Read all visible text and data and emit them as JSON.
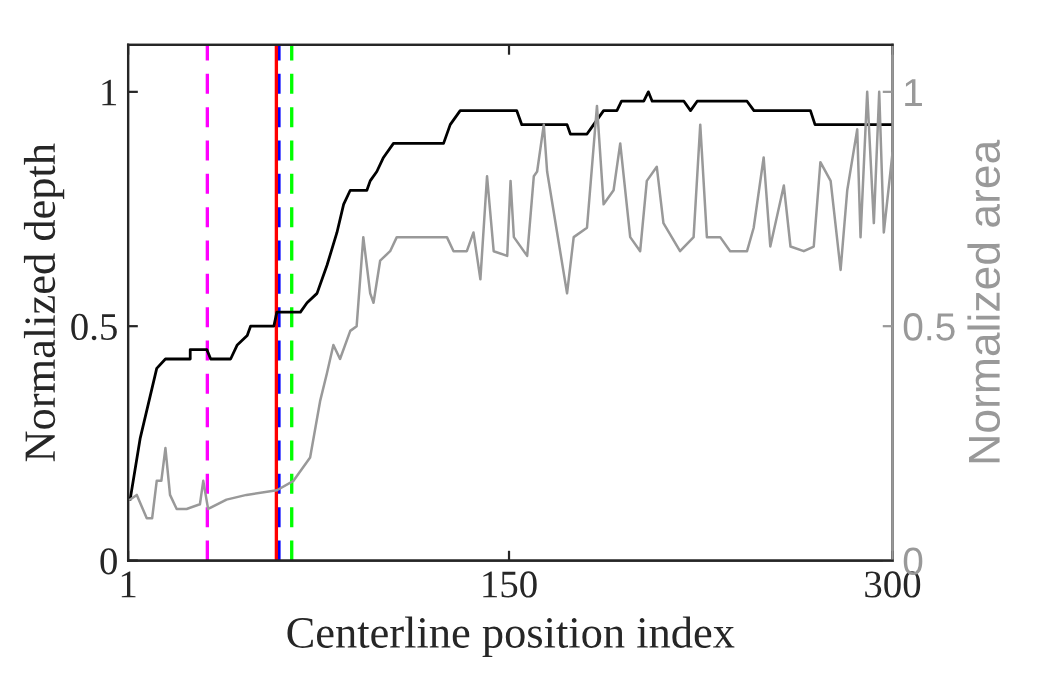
{
  "chart_data": {
    "type": "line",
    "xlabel": "Centerline position index",
    "ylabel": "Normalized depth",
    "y2label": "Normalized area",
    "xlim": [
      1,
      300
    ],
    "xticks": [
      1,
      150,
      300
    ],
    "ylim": [
      0,
      1.1
    ],
    "yticks": [
      0,
      0.5,
      1
    ],
    "y2lim": [
      0,
      1.1
    ],
    "y2ticks": [
      0,
      0.5,
      1
    ],
    "grid": false,
    "legend": false,
    "marker": "none",
    "line_style": "solid",
    "series": [
      {
        "color": "#000000",
        "axis": "y",
        "x": [
          1.8,
          5.7,
          12.2,
          15.6,
          25.3,
          25.3,
          31.8,
          33.3,
          41.1,
          43.7,
          47.6,
          48.9,
          58,
          59.2,
          68.4,
          71,
          74.9,
          78.8,
          82.7,
          85.3,
          87.9,
          94.4,
          95.7,
          98.3,
          100.9,
          104.8,
          124.4,
          127,
          130.9,
          153,
          155,
          172.7,
          174,
          180.5,
          183.1,
          187,
          192.2,
          194,
          202.7,
          204.5,
          206,
          218.4,
          221,
          223.6,
          243.1,
          245.8,
          267.9,
          269.7,
          300
        ],
        "values": [
          0.13,
          0.26,
          0.41,
          0.43,
          0.43,
          0.45,
          0.45,
          0.43,
          0.43,
          0.46,
          0.48,
          0.5,
          0.5,
          0.53,
          0.53,
          0.55,
          0.57,
          0.63,
          0.7,
          0.76,
          0.79,
          0.79,
          0.81,
          0.83,
          0.86,
          0.89,
          0.89,
          0.93,
          0.96,
          0.96,
          0.93,
          0.93,
          0.91,
          0.91,
          0.93,
          0.96,
          0.96,
          0.98,
          0.98,
          1.0,
          0.98,
          0.98,
          0.96,
          0.98,
          0.98,
          0.96,
          0.96,
          0.93,
          0.93
        ]
      },
      {
        "color": "#999999",
        "axis": "y2",
        "x": [
          1.8,
          4.4,
          8.3,
          10.4,
          12.2,
          14,
          15.6,
          17.4,
          20,
          23.9,
          29.1,
          30.4,
          32.3,
          39.5,
          47.3,
          59.2,
          65.7,
          72.2,
          76.1,
          78.8,
          81.3,
          83.9,
          87.9,
          90.4,
          93,
          95.7,
          97,
          99.6,
          103.5,
          106.1,
          125.7,
          128.3,
          133.5,
          136.1,
          138.8,
          141.4,
          144,
          149.3,
          150.6,
          151.9,
          157.1,
          159.7,
          161,
          163.6,
          164.9,
          168.8,
          172.7,
          175.3,
          180.5,
          184.4,
          187,
          190.9,
          193.5,
          197.4,
          201.3,
          203.9,
          207.8,
          210.4,
          216.9,
          222.2,
          224.8,
          227.4,
          232.6,
          236.5,
          243.1,
          245.7,
          249.6,
          252.2,
          257.5,
          260.1,
          265.3,
          269.2,
          271.8,
          275.8,
          279.7,
          282.3,
          286.2,
          287.5,
          290.1,
          292.7,
          294.8,
          296.6,
          300
        ],
        "values": [
          0.13,
          0.14,
          0.09,
          0.09,
          0.17,
          0.17,
          0.24,
          0.14,
          0.11,
          0.11,
          0.12,
          0.17,
          0.11,
          0.13,
          0.14,
          0.15,
          0.17,
          0.22,
          0.34,
          0.4,
          0.46,
          0.43,
          0.49,
          0.5,
          0.69,
          0.57,
          0.55,
          0.64,
          0.66,
          0.69,
          0.69,
          0.66,
          0.66,
          0.7,
          0.6,
          0.82,
          0.66,
          0.65,
          0.81,
          0.69,
          0.65,
          0.82,
          0.83,
          0.93,
          0.83,
          0.7,
          0.57,
          0.69,
          0.71,
          0.97,
          0.76,
          0.79,
          0.89,
          0.69,
          0.66,
          0.81,
          0.84,
          0.72,
          0.66,
          0.69,
          0.93,
          0.69,
          0.69,
          0.66,
          0.66,
          0.71,
          0.86,
          0.67,
          0.8,
          0.67,
          0.66,
          0.67,
          0.85,
          0.81,
          0.62,
          0.79,
          0.92,
          0.69,
          1.0,
          0.72,
          1.0,
          0.7,
          0.87
        ]
      }
    ],
    "ref_lines": [
      {
        "axis": "x",
        "value": 32,
        "color": "#ff00ff",
        "line_style": "dashed"
      },
      {
        "axis": "x",
        "value": 60,
        "color": "#0000ff",
        "line_style": "dashed"
      },
      {
        "axis": "x",
        "value": 59,
        "color": "#ff0000",
        "line_style": "solid"
      },
      {
        "axis": "x",
        "value": 65,
        "color": "#00ff00",
        "line_style": "dashed"
      }
    ]
  }
}
